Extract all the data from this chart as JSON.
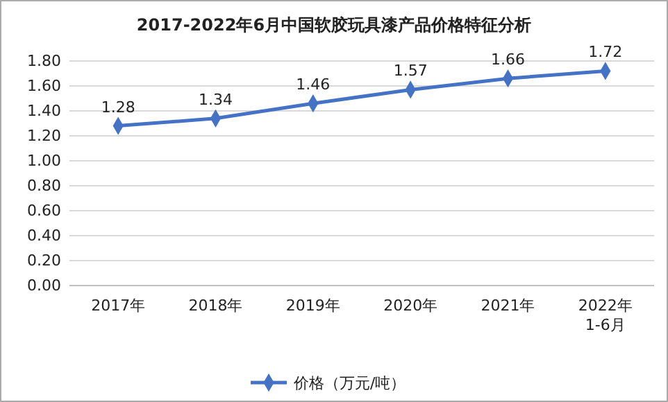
{
  "chart_data": {
    "type": "line",
    "title": "2017-2022年6月中国软胶玩具漆产品价格特征分析",
    "categories": [
      "2017年",
      "2018年",
      "2019年",
      "2020年",
      "2021年",
      "2022年\n1-6月"
    ],
    "series": [
      {
        "name": "价格（万元/吨）",
        "color": "#4472c4",
        "values": [
          1.28,
          1.34,
          1.46,
          1.57,
          1.66,
          1.72
        ]
      }
    ],
    "ylim": [
      0,
      1.8
    ],
    "yticks": [
      {
        "value": 0,
        "label": "0.00"
      },
      {
        "value": 0.2,
        "label": "0.20"
      },
      {
        "value": 0.4,
        "label": "0.40"
      },
      {
        "value": 0.6,
        "label": "0.60"
      },
      {
        "value": 0.8,
        "label": "0.80"
      },
      {
        "value": 1,
        "label": "1.00"
      },
      {
        "value": 1.2,
        "label": "1.20"
      },
      {
        "value": 1.4,
        "label": "1.40"
      },
      {
        "value": 1.6,
        "label": "1.60"
      },
      {
        "value": 1.8,
        "label": "1.80"
      }
    ],
    "grid": "y",
    "legend": "bottom",
    "marker": "diamond",
    "line_style": "solid",
    "data_labels": true
  }
}
